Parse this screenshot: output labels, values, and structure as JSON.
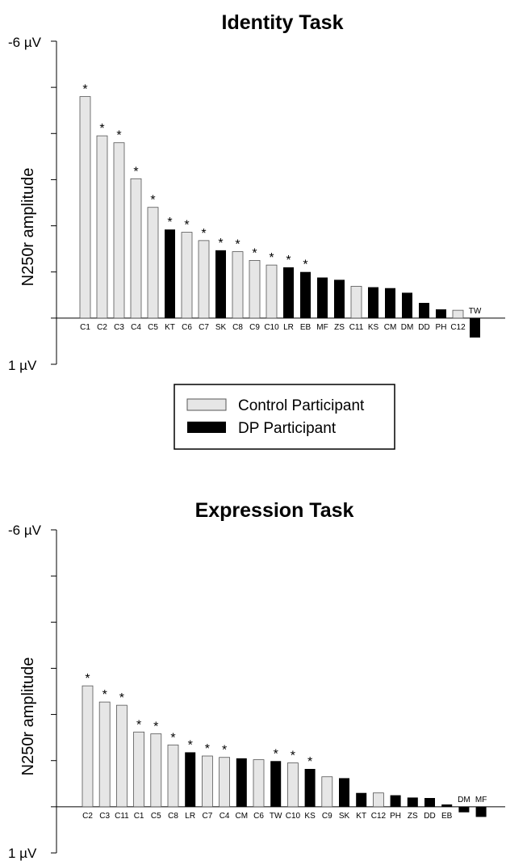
{
  "colors": {
    "control": "#e6e6e6",
    "dp": "#000000",
    "outline": "#555555"
  },
  "legend": {
    "control_label": "Control Participant",
    "dp_label": "DP Participant"
  },
  "chart_data": [
    {
      "type": "bar",
      "title": "Identity Task",
      "ylabel": "N250r amplitude",
      "ylim": [
        -6,
        1
      ],
      "y_tick_labels": {
        "top": "-6 µV",
        "bottom": "1 µV"
      },
      "categories": [
        "C1",
        "C2",
        "C3",
        "C4",
        "C5",
        "KT",
        "C6",
        "C7",
        "SK",
        "C8",
        "C9",
        "C10",
        "LR",
        "EB",
        "MF",
        "ZS",
        "C11",
        "KS",
        "CM",
        "DM",
        "DD",
        "PH",
        "C12",
        "TW"
      ],
      "values": [
        -4.8,
        -3.95,
        -3.8,
        -3.02,
        -2.4,
        -1.92,
        -1.86,
        -1.68,
        -1.47,
        -1.44,
        -1.25,
        -1.15,
        -1.1,
        -1.0,
        -0.88,
        -0.83,
        -0.69,
        -0.67,
        -0.65,
        -0.55,
        -0.33,
        -0.19,
        -0.17,
        0.42
      ],
      "groups": [
        "control",
        "control",
        "control",
        "control",
        "control",
        "dp",
        "control",
        "control",
        "dp",
        "control",
        "control",
        "control",
        "dp",
        "dp",
        "dp",
        "dp",
        "control",
        "dp",
        "dp",
        "dp",
        "dp",
        "dp",
        "control",
        "dp"
      ],
      "significant": [
        true,
        true,
        true,
        true,
        true,
        true,
        true,
        true,
        true,
        true,
        true,
        true,
        true,
        true,
        false,
        false,
        false,
        false,
        false,
        false,
        false,
        false,
        false,
        false
      ],
      "significance_marker": "*"
    },
    {
      "type": "bar",
      "title": "Expression Task",
      "ylabel": "N250r amplitude",
      "ylim": [
        -6,
        1
      ],
      "y_tick_labels": {
        "top": "-6 µV",
        "bottom": "1 µV"
      },
      "categories": [
        "C2",
        "C3",
        "C11",
        "C1",
        "C5",
        "C8",
        "LR",
        "C7",
        "C4",
        "CM",
        "C6",
        "TW",
        "C10",
        "KS",
        "C9",
        "SK",
        "KT",
        "C12",
        "PH",
        "ZS",
        "DD",
        "EB",
        "DM",
        "MF"
      ],
      "values": [
        -2.62,
        -2.27,
        -2.2,
        -1.62,
        -1.58,
        -1.34,
        -1.18,
        -1.1,
        -1.07,
        -1.05,
        -1.02,
        -0.99,
        -0.95,
        -0.82,
        -0.65,
        -0.62,
        -0.3,
        -0.3,
        -0.25,
        -0.2,
        -0.19,
        -0.05,
        0.12,
        0.22
      ],
      "groups": [
        "control",
        "control",
        "control",
        "control",
        "control",
        "control",
        "dp",
        "control",
        "control",
        "dp",
        "control",
        "dp",
        "control",
        "dp",
        "control",
        "dp",
        "dp",
        "control",
        "dp",
        "dp",
        "dp",
        "dp",
        "dp",
        "dp"
      ],
      "significant": [
        true,
        true,
        true,
        true,
        true,
        true,
        true,
        true,
        true,
        false,
        false,
        true,
        true,
        true,
        false,
        false,
        false,
        false,
        false,
        false,
        false,
        false,
        false,
        false
      ],
      "significance_marker": "*"
    }
  ]
}
